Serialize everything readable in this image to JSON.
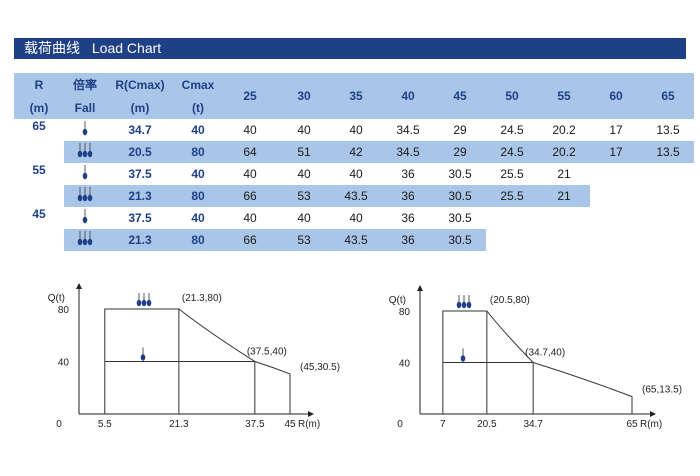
{
  "title": {
    "zh": "载荷曲线",
    "en": "Load Chart"
  },
  "table": {
    "header_top": [
      "R",
      "倍率",
      "R(Cmax)",
      "Cmax"
    ],
    "header_bottom": [
      "(m)",
      "Fall",
      "(m)",
      "(t)"
    ],
    "radii": [
      "25",
      "30",
      "35",
      "40",
      "45",
      "50",
      "55",
      "60",
      "65"
    ],
    "groups": [
      {
        "length": "65",
        "rows": [
          {
            "fall": "single",
            "rcmax": "34.7",
            "cmax": "40",
            "loads": [
              "40",
              "40",
              "40",
              "34.5",
              "29",
              "24.5",
              "20.2",
              "17",
              "13.5"
            ]
          },
          {
            "fall": "double",
            "rcmax": "20.5",
            "cmax": "80",
            "loads": [
              "64",
              "51",
              "42",
              "34.5",
              "29",
              "24.5",
              "20.2",
              "17",
              "13.5"
            ]
          }
        ]
      },
      {
        "length": "55",
        "rows": [
          {
            "fall": "single",
            "rcmax": "37.5",
            "cmax": "40",
            "loads": [
              "40",
              "40",
              "40",
              "36",
              "30.5",
              "25.5",
              "21"
            ]
          },
          {
            "fall": "double",
            "rcmax": "21.3",
            "cmax": "80",
            "loads": [
              "66",
              "53",
              "43.5",
              "36",
              "30.5",
              "25.5",
              "21"
            ]
          }
        ]
      },
      {
        "length": "45",
        "rows": [
          {
            "fall": "single",
            "rcmax": "37.5",
            "cmax": "40",
            "loads": [
              "40",
              "40",
              "40",
              "36",
              "30.5"
            ]
          },
          {
            "fall": "double",
            "rcmax": "21.3",
            "cmax": "80",
            "loads": [
              "66",
              "53",
              "43.5",
              "36",
              "30.5"
            ]
          }
        ]
      }
    ]
  },
  "charts": {
    "left": {
      "ylabel": "Q(t)",
      "xlabel": "R(m)",
      "yticks": [
        "80",
        "40"
      ],
      "xticks": [
        "0",
        "5.5",
        "21.3",
        "37.5",
        "45"
      ],
      "annotations": [
        "(21.3,80)",
        "(37.5,40)",
        "(45,30.5)"
      ]
    },
    "right": {
      "ylabel": "Q(t)",
      "xlabel": "R(m)",
      "yticks": [
        "80",
        "40"
      ],
      "xticks": [
        "0",
        "7",
        "20.5",
        "34.7",
        "65"
      ],
      "annotations": [
        "(20.5,80)",
        "(34.7,40)",
        "(65,13.5)"
      ]
    }
  },
  "chart_data": [
    {
      "type": "line",
      "ylabel": "Q(t)",
      "xlabel": "R(m)",
      "series": [
        {
          "values": [
            [
              5.5,
              80
            ],
            [
              21.3,
              80
            ],
            [
              37.5,
              40
            ],
            [
              45,
              30.5
            ]
          ]
        },
        {
          "values": [
            [
              5.5,
              40
            ],
            [
              37.5,
              40
            ]
          ]
        }
      ],
      "xlim": [
        0,
        45
      ],
      "ylim": [
        0,
        80
      ]
    },
    {
      "type": "line",
      "ylabel": "Q(t)",
      "xlabel": "R(m)",
      "series": [
        {
          "values": [
            [
              7,
              80
            ],
            [
              20.5,
              80
            ],
            [
              34.7,
              40
            ],
            [
              65,
              13.5
            ]
          ]
        },
        {
          "values": [
            [
              7,
              40
            ],
            [
              34.7,
              40
            ]
          ]
        }
      ],
      "xlim": [
        0,
        65
      ],
      "ylim": [
        0,
        80
      ]
    }
  ],
  "colors": {
    "banner": "#1f3f86",
    "band": "#a9c6e8",
    "hook": "#1f3f86"
  }
}
